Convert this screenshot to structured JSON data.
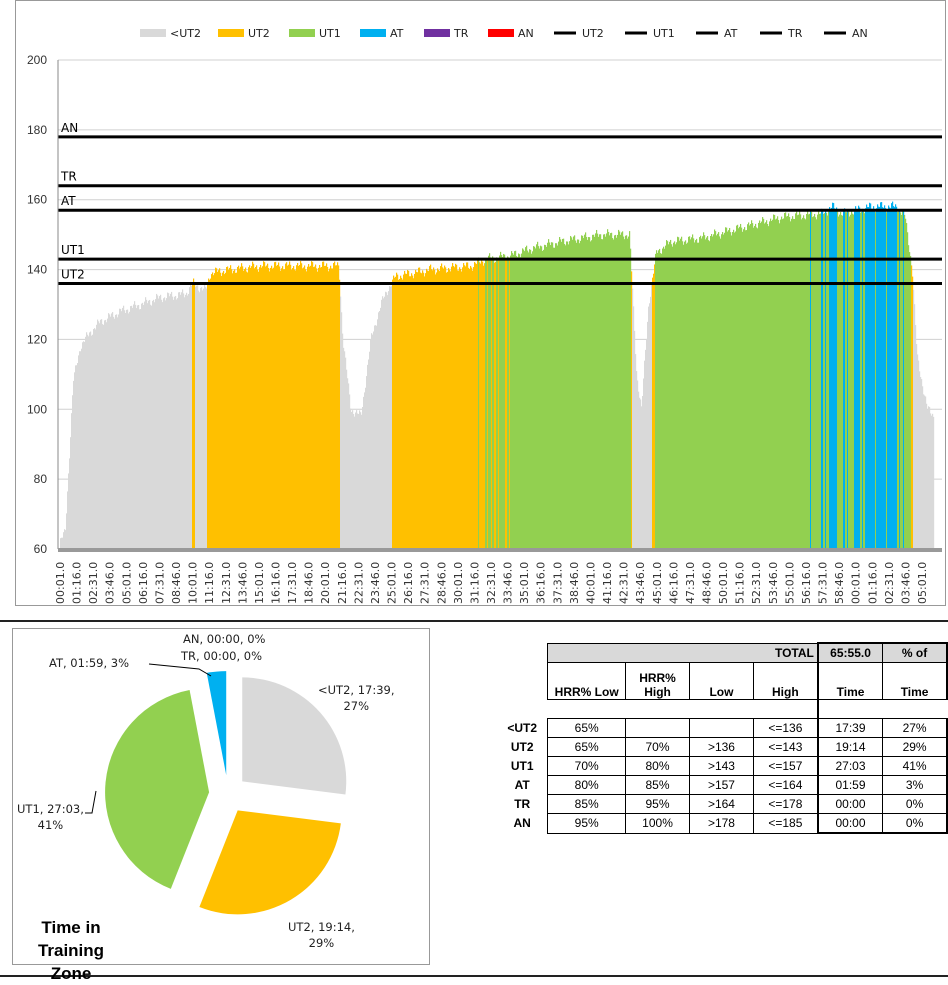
{
  "chart_data": [
    {
      "type": "area",
      "title": "",
      "xlabel": "",
      "ylabel": "",
      "ylim": [
        60,
        200
      ],
      "yticks": [
        60,
        80,
        100,
        120,
        140,
        160,
        180,
        200
      ],
      "xticks": [
        "00:01.0",
        "01:16.0",
        "02:31.0",
        "03:46.0",
        "05:01.0",
        "06:16.0",
        "07:31.0",
        "08:46.0",
        "10:01.0",
        "11:16.0",
        "12:31.0",
        "13:46.0",
        "15:01.0",
        "16:16.0",
        "17:31.0",
        "18:46.0",
        "20:01.0",
        "21:16.0",
        "22:31.0",
        "23:46.0",
        "25:01.0",
        "26:16.0",
        "27:31.0",
        "28:46.0",
        "30:01.0",
        "31:16.0",
        "32:31.0",
        "33:46.0",
        "35:01.0",
        "36:16.0",
        "37:31.0",
        "38:46.0",
        "40:01.0",
        "41:16.0",
        "42:31.0",
        "43:46.0",
        "45:01.0",
        "46:16.0",
        "47:31.0",
        "48:46.0",
        "50:01.0",
        "51:16.0",
        "52:31.0",
        "53:46.0",
        "55:01.0",
        "56:16.0",
        "57:31.0",
        "58:46.0",
        "00:01.0",
        "01:16.0",
        "02:31.0",
        "03:46.0",
        "05:01.0"
      ],
      "grid": true,
      "legend": "top",
      "legend_items": [
        {
          "label": "<UT2",
          "type": "area",
          "color": "#d9d9d9"
        },
        {
          "label": "UT2",
          "type": "area",
          "color": "#ffc000"
        },
        {
          "label": "UT1",
          "type": "area",
          "color": "#92d050"
        },
        {
          "label": "AT",
          "type": "area",
          "color": "#00b0f0"
        },
        {
          "label": "TR",
          "type": "area",
          "color": "#7030a0"
        },
        {
          "label": "AN",
          "type": "area",
          "color": "#ff0000"
        },
        {
          "label": "UT2",
          "type": "line",
          "color": "#000000"
        },
        {
          "label": "UT1",
          "type": "line",
          "color": "#000000"
        },
        {
          "label": "AT",
          "type": "line",
          "color": "#000000"
        },
        {
          "label": "TR",
          "type": "line",
          "color": "#000000"
        },
        {
          "label": "AN",
          "type": "line",
          "color": "#000000"
        }
      ],
      "zone_lines": [
        {
          "label": "UT2",
          "value": 136
        },
        {
          "label": "UT1",
          "value": 143
        },
        {
          "label": "AT",
          "value": 157
        },
        {
          "label": "TR",
          "value": 164
        },
        {
          "label": "AN",
          "value": 178
        }
      ],
      "heart_rate": {
        "elapsed": [
          "00:01",
          "00:23",
          "00:59",
          "01:31",
          "02:16",
          "03:01",
          "04:32",
          "06:03",
          "07:34",
          "09:27",
          "09:59",
          "10:58",
          "11:20",
          "12:51",
          "15:07",
          "18:08",
          "21:01",
          "21:19",
          "21:55",
          "22:41",
          "23:26",
          "24:11",
          "24:47",
          "25:19",
          "27:58",
          "30:59",
          "32:07",
          "34:01",
          "35:31",
          "37:48",
          "40:49",
          "42:56",
          "43:28",
          "43:50",
          "44:22",
          "44:58",
          "46:06",
          "48:22",
          "51:24",
          "54:25",
          "57:27",
          "58:12",
          "58:57",
          "61:13",
          "63:07",
          "63:43",
          "64:15",
          "64:37",
          "65:23",
          "65:55"
        ],
        "bpm": [
          62,
          65,
          108,
          118,
          122,
          125,
          128,
          130,
          132,
          133,
          136,
          134,
          139,
          140,
          141,
          141,
          141,
          120,
          100,
          98,
          120,
          130,
          135,
          138,
          140,
          141,
          143,
          144,
          146,
          148,
          150,
          150,
          110,
          100,
          130,
          145,
          148,
          149,
          152,
          155,
          156,
          158,
          156,
          158,
          158,
          155,
          140,
          115,
          100,
          98
        ]
      }
    },
    {
      "type": "pie",
      "title": "Time in Training Zone",
      "slices": [
        {
          "label": "<UT2",
          "time": "17:39",
          "percent": 27,
          "color": "#d9d9d9",
          "text": "<UT2, 17:39,",
          "text2": "27%"
        },
        {
          "label": "UT2",
          "time": "19:14",
          "percent": 29,
          "color": "#ffc000",
          "text": "UT2, 19:14,",
          "text2": "29%"
        },
        {
          "label": "UT1",
          "time": "27:03",
          "percent": 41,
          "color": "#92d050",
          "text": "UT1, 27:03,",
          "text2": "41%"
        },
        {
          "label": "AT",
          "time": "01:59",
          "percent": 3,
          "color": "#00b0f0",
          "text": "AT, 01:59, 3%"
        },
        {
          "label": "TR",
          "time": "00:00",
          "percent": 0,
          "color": "#7030a0",
          "text": "TR, 00:00, 0%"
        },
        {
          "label": "AN",
          "time": "00:00",
          "percent": 0,
          "color": "#ff0000",
          "text": "AN, 00:00,",
          "text2": "0%"
        }
      ]
    }
  ],
  "table": {
    "total_label": "TOTAL",
    "total_time": "65:55.0",
    "pct_label": "% of",
    "headers": [
      "HRR% Low",
      "HRR% High",
      "Low",
      "High",
      "Time",
      "Time"
    ],
    "rows": [
      {
        "zone": "<UT2",
        "hrr_low": "65%",
        "hrr_high": "",
        "low": "",
        "high": "<=136",
        "time": "17:39",
        "pct": "27%"
      },
      {
        "zone": "UT2",
        "hrr_low": "65%",
        "hrr_high": "70%",
        "low": ">136",
        "high": "<=143",
        "time": "19:14",
        "pct": "29%"
      },
      {
        "zone": "UT1",
        "hrr_low": "70%",
        "hrr_high": "80%",
        "low": ">143",
        "high": "<=157",
        "time": "27:03",
        "pct": "41%"
      },
      {
        "zone": "AT",
        "hrr_low": "80%",
        "hrr_high": "85%",
        "low": ">157",
        "high": "<=164",
        "time": "01:59",
        "pct": "3%"
      },
      {
        "zone": "TR",
        "hrr_low": "85%",
        "hrr_high": "95%",
        "low": ">164",
        "high": "<=178",
        "time": "00:00",
        "pct": "0%"
      },
      {
        "zone": "AN",
        "hrr_low": "95%",
        "hrr_high": "100%",
        "low": ">178",
        "high": "<=185",
        "time": "00:00",
        "pct": "0%"
      }
    ]
  }
}
